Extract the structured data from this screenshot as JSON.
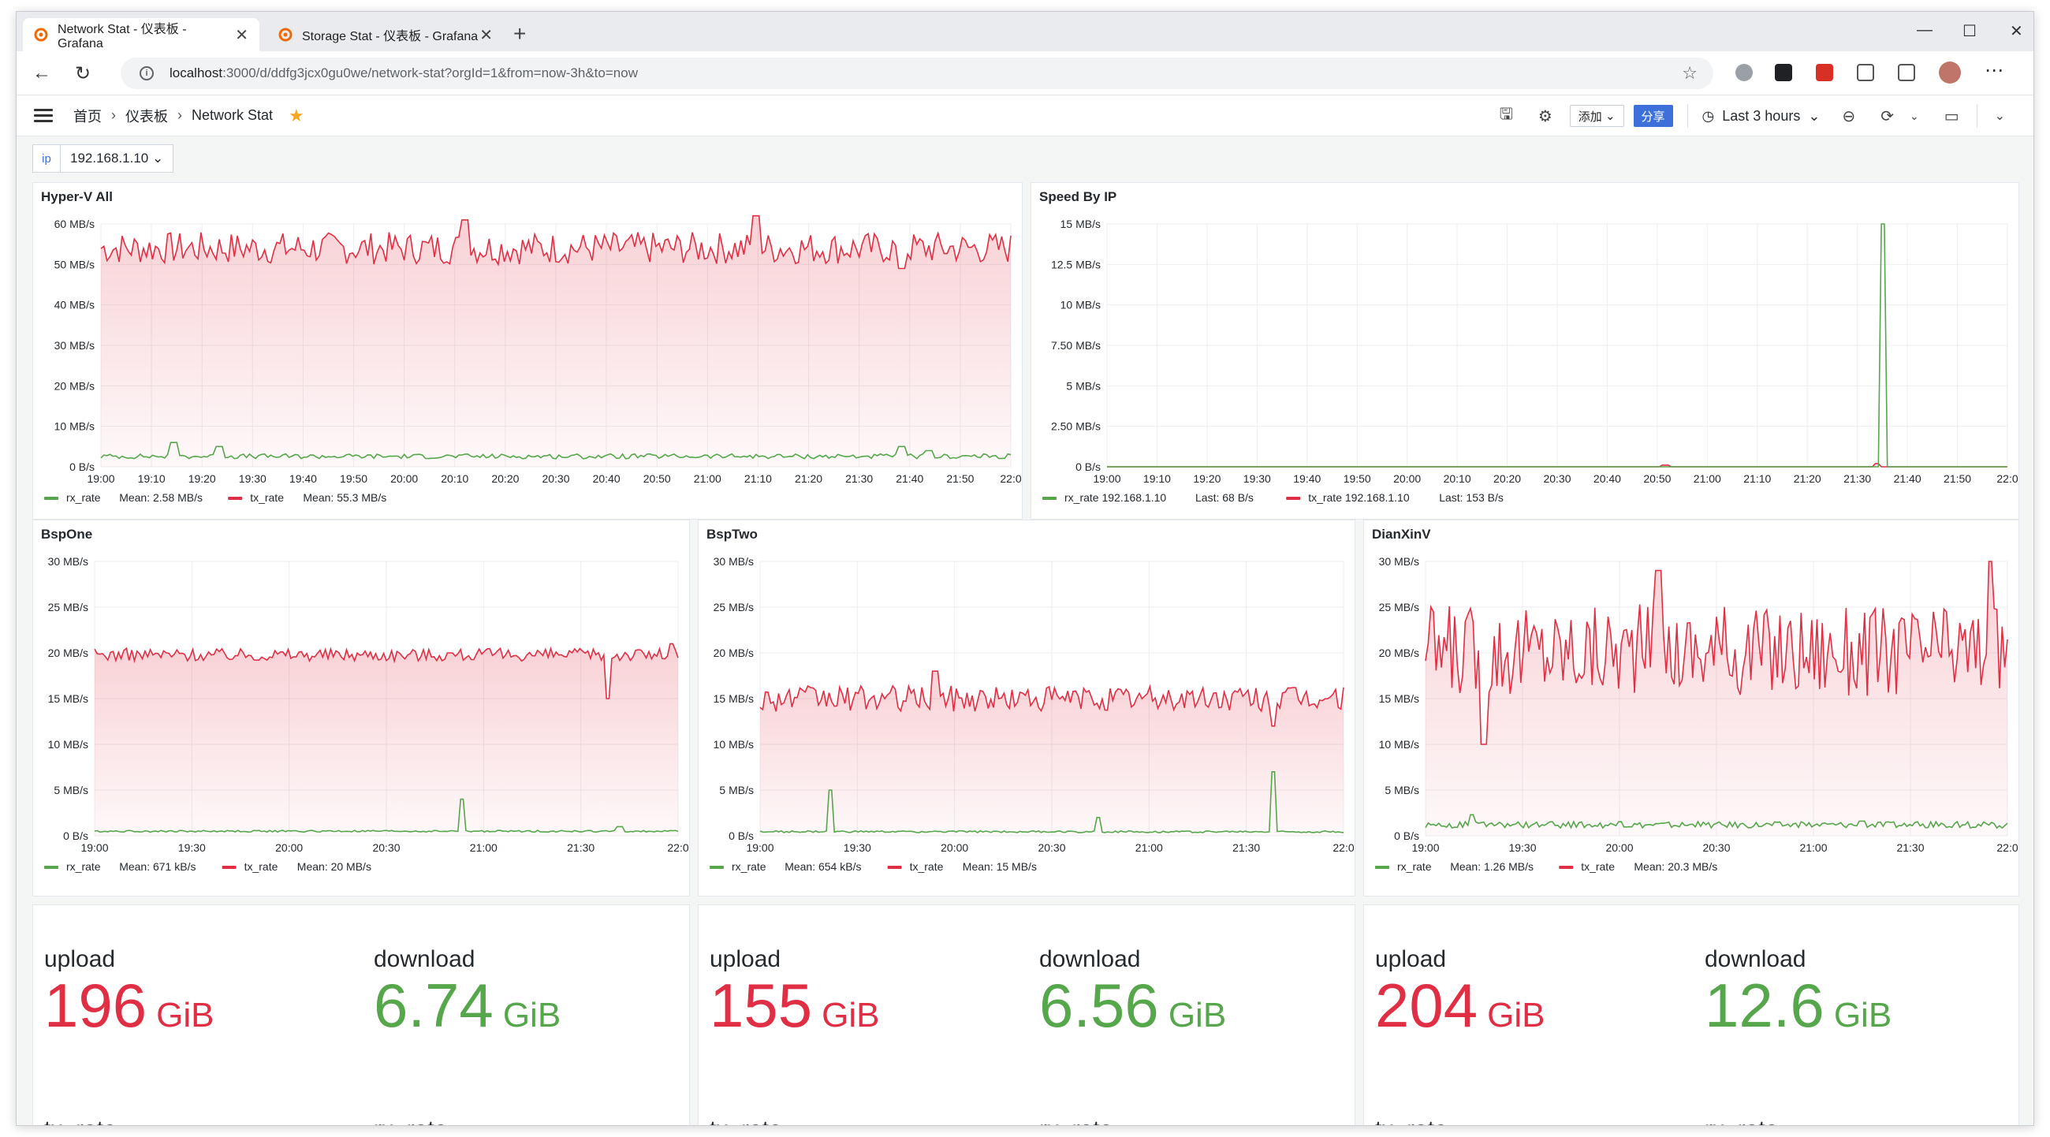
{
  "browser": {
    "tabs": [
      {
        "title": "Network Stat - 仪表板 - Grafana",
        "active": true
      },
      {
        "title": "Storage Stat - 仪表板 - Grafana",
        "active": false
      }
    ],
    "new_tab": "+",
    "url_host": "localhost",
    "url_rest": ":3000/d/ddfg3jcx0gu0we/network-stat?orgId=1&from=now-3h&to=now",
    "window_controls": [
      "—",
      "☐",
      "✕"
    ]
  },
  "nav": {
    "breadcrumb": [
      "首页",
      "仪表板",
      "Network Stat"
    ],
    "add_label": "添加",
    "share_label": "分享",
    "time_range": "Last 3 hours"
  },
  "variable": {
    "label": "ip",
    "value": "192.168.1.10"
  },
  "panels": {
    "hyperv": {
      "title": "Hyper-V All"
    },
    "speedbyip": {
      "title": "Speed By IP"
    },
    "bspone": {
      "title": "BspOne"
    },
    "bsptwo": {
      "title": "BspTwo"
    },
    "dianxinv": {
      "title": "DianXinV"
    }
  },
  "stats": [
    {
      "upload_label": "upload",
      "upload_value": "196",
      "upload_unit": "GiB",
      "download_label": "download",
      "download_value": "6.74",
      "download_unit": "GiB",
      "tx_label": "tx_rate",
      "rx_label": "rx_rate"
    },
    {
      "upload_label": "upload",
      "upload_value": "155",
      "upload_unit": "GiB",
      "download_label": "download",
      "download_value": "6.56",
      "download_unit": "GiB",
      "tx_label": "tx_rate",
      "rx_label": "rx_rate"
    },
    {
      "upload_label": "upload",
      "upload_value": "204",
      "upload_unit": "GiB",
      "download_label": "download",
      "download_value": "12.6",
      "download_unit": "GiB",
      "tx_label": "tx_rate",
      "rx_label": "rx_rate"
    }
  ],
  "colors": {
    "red": "#e02f44",
    "green": "#56a64b",
    "accent": "#3d71d9"
  },
  "chart_data": [
    {
      "id": "hyperv",
      "type": "line",
      "title": "Hyper-V All",
      "ylim": [
        0,
        62914560
      ],
      "yticks": [
        0,
        10485760,
        20971520,
        31457280,
        41943040,
        52428800,
        62914560
      ],
      "yticklabels": [
        "0 B/s",
        "10 MB/s",
        "20 MB/s",
        "30 MB/s",
        "40 MB/s",
        "50 MB/s",
        "60 MB/s"
      ],
      "xticklabels": [
        "19:00",
        "19:10",
        "19:20",
        "19:30",
        "19:40",
        "19:50",
        "20:00",
        "20:10",
        "20:20",
        "20:30",
        "20:40",
        "20:50",
        "21:00",
        "21:10",
        "21:20",
        "21:30",
        "21:40",
        "21:50",
        "22:0"
      ],
      "series": [
        {
          "name": "rx_rate",
          "color": "#56a64b",
          "legend": "Mean: 2.58 MB/s",
          "base": 2.58,
          "noise": 0.6,
          "spikes": [
            [
              0.08,
              6
            ],
            [
              0.13,
              5
            ],
            [
              0.88,
              5
            ],
            [
              0.91,
              4
            ]
          ]
        },
        {
          "name": "tx_rate",
          "color": "#e02f44",
          "legend": "Mean: 55.3 MB/s",
          "base": 54,
          "noise": 4,
          "spikes": [
            [
              0.4,
              61
            ],
            [
              0.72,
              62
            ],
            [
              0.88,
              49
            ]
          ]
        }
      ]
    },
    {
      "id": "speedbyip",
      "type": "line",
      "title": "Speed By IP",
      "ylim": [
        0,
        15728640
      ],
      "yticks": [
        0,
        2621440,
        5242880,
        7864320,
        10485760,
        13107200,
        15728640
      ],
      "yticklabels": [
        "0 B/s",
        "2.50 MB/s",
        "5 MB/s",
        "7.50 MB/s",
        "10 MB/s",
        "12.5 MB/s",
        "15 MB/s"
      ],
      "xticklabels": [
        "19:00",
        "19:10",
        "19:20",
        "19:30",
        "19:40",
        "19:50",
        "20:00",
        "20:10",
        "20:20",
        "20:30",
        "20:40",
        "20:50",
        "21:00",
        "21:10",
        "21:20",
        "21:30",
        "21:40",
        "21:50",
        "22:0"
      ],
      "series": [
        {
          "name": "rx_rate 192.168.1.10",
          "color": "#56a64b",
          "legend": "Last: 68 B/s",
          "base": 0.0,
          "noise": 0.0,
          "spikes": [
            [
              0.861,
              15
            ]
          ]
        },
        {
          "name": "tx_rate 192.168.1.10",
          "color": "#e02f44",
          "legend": "Last: 153 B/s",
          "base": 0.0,
          "noise": 0.0,
          "spikes": [
            [
              0.62,
              0.1
            ],
            [
              0.855,
              0.2
            ]
          ]
        }
      ]
    },
    {
      "id": "bspone",
      "type": "line",
      "title": "BspOne",
      "ylim": [
        0,
        31457280
      ],
      "yticks": [
        0,
        5242880,
        10485760,
        15728640,
        20971520,
        26214400,
        31457280
      ],
      "yticklabels": [
        "0 B/s",
        "5 MB/s",
        "10 MB/s",
        "15 MB/s",
        "20 MB/s",
        "25 MB/s",
        "30 MB/s"
      ],
      "xticklabels": [
        "19:00",
        "19:30",
        "20:00",
        "20:30",
        "21:00",
        "21:30",
        "22:0"
      ],
      "series": [
        {
          "name": "rx_rate",
          "color": "#56a64b",
          "legend": "Mean: 671 kB/s",
          "base": 0.5,
          "noise": 0.1,
          "spikes": [
            [
              0.63,
              4
            ],
            [
              0.9,
              1
            ]
          ]
        },
        {
          "name": "tx_rate",
          "color": "#e02f44",
          "legend": "Mean: 20 MB/s",
          "base": 19.8,
          "noise": 0.7,
          "spikes": [
            [
              0.88,
              15
            ],
            [
              0.99,
              21
            ]
          ]
        }
      ]
    },
    {
      "id": "bsptwo",
      "type": "line",
      "title": "BspTwo",
      "ylim": [
        0,
        31457280
      ],
      "yticks": [
        0,
        5242880,
        10485760,
        15728640,
        20971520,
        26214400,
        31457280
      ],
      "yticklabels": [
        "0 B/s",
        "5 MB/s",
        "10 MB/s",
        "15 MB/s",
        "20 MB/s",
        "25 MB/s",
        "30 MB/s"
      ],
      "xticklabels": [
        "19:00",
        "19:30",
        "20:00",
        "20:30",
        "21:00",
        "21:30",
        "22:0"
      ],
      "series": [
        {
          "name": "rx_rate",
          "color": "#56a64b",
          "legend": "Mean: 654 kB/s",
          "base": 0.45,
          "noise": 0.1,
          "spikes": [
            [
              0.12,
              5
            ],
            [
              0.58,
              2
            ],
            [
              0.88,
              7
            ]
          ]
        },
        {
          "name": "tx_rate",
          "color": "#e02f44",
          "legend": "Mean: 15 MB/s",
          "base": 15,
          "noise": 1.4,
          "spikes": [
            [
              0.3,
              18
            ],
            [
              0.88,
              12
            ]
          ]
        }
      ]
    },
    {
      "id": "dianxinv",
      "type": "line",
      "title": "DianXinV",
      "ylim": [
        0,
        31457280
      ],
      "yticks": [
        0,
        5242880,
        10485760,
        15728640,
        20971520,
        26214400,
        31457280
      ],
      "yticklabels": [
        "0 B/s",
        "5 MB/s",
        "10 MB/s",
        "15 MB/s",
        "20 MB/s",
        "25 MB/s",
        "30 MB/s"
      ],
      "xticklabels": [
        "19:00",
        "19:30",
        "20:00",
        "20:30",
        "21:00",
        "21:30",
        "22:0"
      ],
      "series": [
        {
          "name": "rx_rate",
          "color": "#56a64b",
          "legend": "Mean: 1.26 MB/s",
          "base": 1.2,
          "noise": 0.35,
          "spikes": [
            [
              0.08,
              2.3
            ],
            [
              0.75,
              1.6
            ]
          ]
        },
        {
          "name": "tx_rate",
          "color": "#e02f44",
          "legend": "Mean: 20.3 MB/s",
          "base": 20.3,
          "noise": 5,
          "spikes": [
            [
              0.4,
              29
            ],
            [
              0.97,
              30
            ],
            [
              0.1,
              10
            ]
          ]
        }
      ]
    }
  ]
}
